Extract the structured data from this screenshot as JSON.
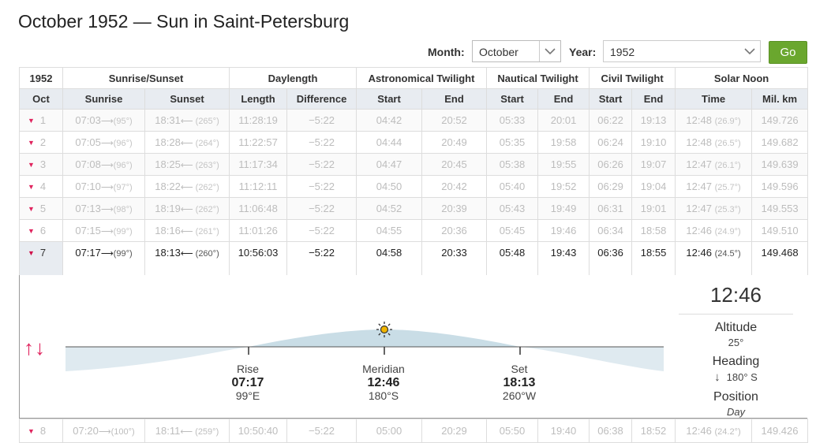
{
  "page": {
    "title": "October 1952 — Sun in Saint-Petersburg"
  },
  "controls": {
    "month_label": "Month:",
    "month_value": "October",
    "year_label": "Year:",
    "year_value": "1952",
    "go_label": "Go"
  },
  "table": {
    "groups": [
      "1952",
      "Sunrise/Sunset",
      "Daylength",
      "Astronomical Twilight",
      "Nautical Twilight",
      "Civil Twilight",
      "Solar Noon"
    ],
    "columns": [
      "Oct",
      "Sunrise",
      "Sunset",
      "Length",
      "Difference",
      "Start",
      "End",
      "Start",
      "End",
      "Start",
      "End",
      "Time",
      "Mil. km"
    ],
    "rows": [
      {
        "day": "1",
        "sunrise": "07:03",
        "rise_deg": "(95°)",
        "sunset": "18:31",
        "set_deg": "(265°)",
        "length": "11:28:19",
        "diff": "−5:22",
        "astro_start": "04:42",
        "astro_end": "20:52",
        "naut_start": "05:33",
        "naut_end": "20:01",
        "civil_start": "06:22",
        "civil_end": "19:13",
        "noon": "12:48",
        "noon_deg": "(26.9°)",
        "dist": "149.726"
      },
      {
        "day": "2",
        "sunrise": "07:05",
        "rise_deg": "(96°)",
        "sunset": "18:28",
        "set_deg": "(264°)",
        "length": "11:22:57",
        "diff": "−5:22",
        "astro_start": "04:44",
        "astro_end": "20:49",
        "naut_start": "05:35",
        "naut_end": "19:58",
        "civil_start": "06:24",
        "civil_end": "19:10",
        "noon": "12:48",
        "noon_deg": "(26.5°)",
        "dist": "149.682"
      },
      {
        "day": "3",
        "sunrise": "07:08",
        "rise_deg": "(96°)",
        "sunset": "18:25",
        "set_deg": "(263°)",
        "length": "11:17:34",
        "diff": "−5:22",
        "astro_start": "04:47",
        "astro_end": "20:45",
        "naut_start": "05:38",
        "naut_end": "19:55",
        "civil_start": "06:26",
        "civil_end": "19:07",
        "noon": "12:47",
        "noon_deg": "(26.1°)",
        "dist": "149.639"
      },
      {
        "day": "4",
        "sunrise": "07:10",
        "rise_deg": "(97°)",
        "sunset": "18:22",
        "set_deg": "(262°)",
        "length": "11:12:11",
        "diff": "−5:22",
        "astro_start": "04:50",
        "astro_end": "20:42",
        "naut_start": "05:40",
        "naut_end": "19:52",
        "civil_start": "06:29",
        "civil_end": "19:04",
        "noon": "12:47",
        "noon_deg": "(25.7°)",
        "dist": "149.596"
      },
      {
        "day": "5",
        "sunrise": "07:13",
        "rise_deg": "(98°)",
        "sunset": "18:19",
        "set_deg": "(262°)",
        "length": "11:06:48",
        "diff": "−5:22",
        "astro_start": "04:52",
        "astro_end": "20:39",
        "naut_start": "05:43",
        "naut_end": "19:49",
        "civil_start": "06:31",
        "civil_end": "19:01",
        "noon": "12:47",
        "noon_deg": "(25.3°)",
        "dist": "149.553"
      },
      {
        "day": "6",
        "sunrise": "07:15",
        "rise_deg": "(99°)",
        "sunset": "18:16",
        "set_deg": "(261°)",
        "length": "11:01:26",
        "diff": "−5:22",
        "astro_start": "04:55",
        "astro_end": "20:36",
        "naut_start": "05:45",
        "naut_end": "19:46",
        "civil_start": "06:34",
        "civil_end": "18:58",
        "noon": "12:46",
        "noon_deg": "(24.9°)",
        "dist": "149.510"
      }
    ],
    "active": {
      "day": "7",
      "sunrise": "07:17",
      "rise_deg": "(99°)",
      "sunset": "18:13",
      "set_deg": "(260°)",
      "length": "10:56:03",
      "diff": "−5:22",
      "astro_start": "04:58",
      "astro_end": "20:33",
      "naut_start": "05:48",
      "naut_end": "19:43",
      "civil_start": "06:36",
      "civil_end": "18:55",
      "noon": "12:46",
      "noon_deg": "(24.5°)",
      "dist": "149.468"
    },
    "next": {
      "day": "8",
      "sunrise": "07:20",
      "rise_deg": "(100°)",
      "sunset": "18:11",
      "set_deg": "(259°)",
      "length": "10:50:40",
      "diff": "−5:22",
      "astro_start": "05:00",
      "astro_end": "20:29",
      "naut_start": "05:50",
      "naut_end": "19:40",
      "civil_start": "06:38",
      "civil_end": "18:52",
      "noon": "12:46",
      "noon_deg": "(24.2°)",
      "dist": "149.426"
    }
  },
  "detail": {
    "rise": {
      "label": "Rise",
      "time": "07:17",
      "dir": "99°E"
    },
    "meridian": {
      "label": "Meridian",
      "time": "12:46",
      "dir": "180°S"
    },
    "set": {
      "label": "Set",
      "time": "18:13",
      "dir": "260°W"
    },
    "clock": "12:46",
    "altitude_label": "Altitude",
    "altitude": "25°",
    "heading_label": "Heading",
    "heading": "180° S",
    "position_label": "Position",
    "position": "Day",
    "icons": {
      "rise_arrow": "arrow-right-icon",
      "set_arrow": "arrow-left-icon",
      "sun": "sun-icon",
      "updown": "up-down-arrows-icon"
    }
  }
}
